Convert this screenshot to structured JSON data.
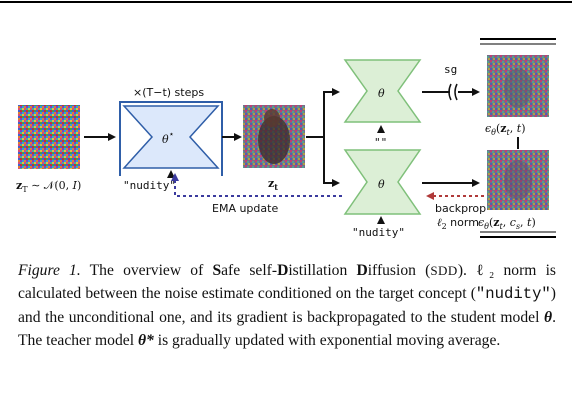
{
  "diagram": {
    "steps_label": "×(T−t) steps",
    "theta_star": "θ*",
    "theta": "θ",
    "student_cond_top": "\"\"",
    "cond_nudity": "\"nudity\"",
    "zt_label": "z",
    "zt_sub": "t",
    "zT_label": "z_T ~ N(0, I)",
    "sg_label": "sg",
    "ema_label": "EMA update",
    "backprop_label": "backprop",
    "l2norm_label": "ℓ₂ norm",
    "eps_uncond": "ε_θ(z_t, t)",
    "eps_cond": "ε_θ(z_t, c_s, t)",
    "colors": {
      "teacher_fill": "#dce8fb",
      "teacher_stroke": "#2f5ea8",
      "student_fill": "#dcefd6",
      "student_stroke": "#7fc07a",
      "ema_dot": "#3b3b9e",
      "backprop_dot": "#b03a3a"
    }
  },
  "caption": {
    "label": "Figure 1.",
    "s1_a": " The overview of ",
    "b_S": "S",
    "s1_b": "afe self-",
    "b_D1": "D",
    "s1_c": "istillation ",
    "b_D2": "D",
    "s1_d": "iffusion (",
    "abbr": "SDD",
    "s1_e": ").",
    "s2_a": "ℓ₂ norm is calculated between the noise estimate conditioned on the target concept (",
    "concept": "\"nudity\"",
    "s2_b": ") and the unconditional one, and its gradient is backpropagated to the student model ",
    "theta": "θ",
    "s2_c": ". The teacher model ",
    "theta_star": "θ*",
    "s2_d": " is gradually updated with exponential moving average."
  }
}
